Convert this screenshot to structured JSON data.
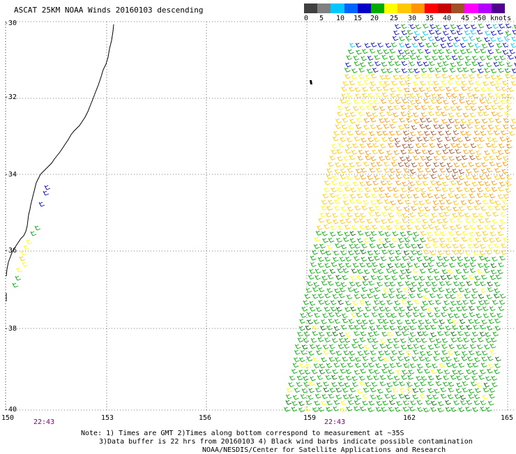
{
  "title": "ASCAT 25KM NOAA Winds 20160103 descending",
  "legend": {
    "colors": [
      "#404040",
      "#808080",
      "#00c8ff",
      "#0064ff",
      "#0000c8",
      "#00aa00",
      "#ffff00",
      "#ffc800",
      "#ff9600",
      "#ff0000",
      "#c80000",
      "#a05028",
      "#ff00ff",
      "#b400ff",
      "#50008c"
    ],
    "labels": [
      "0",
      "5",
      "10",
      "15",
      "20",
      "25",
      "30",
      "35",
      "40",
      "45",
      ">50 knots"
    ]
  },
  "axes": {
    "lat_labels": [
      "-30",
      "-32",
      "-34",
      "-36",
      "-38",
      "-40"
    ],
    "lon_labels": [
      "150",
      "153",
      "156",
      "159",
      "162",
      "165"
    ]
  },
  "times": [
    "22:43",
    "22:43"
  ],
  "notes": {
    "line1": "Note: 1) Times are GMT 2)Times along bottom correspond to measurement at ~35S",
    "line2": "3)Data buffer is 22 hrs from 20160103 4) Black wind barbs indicate possible contamination",
    "line3": "NOAA/NESDIS/Center for Satellite Applications and Research"
  },
  "colors": {
    "time": "#800080",
    "grid": "#000000"
  }
}
